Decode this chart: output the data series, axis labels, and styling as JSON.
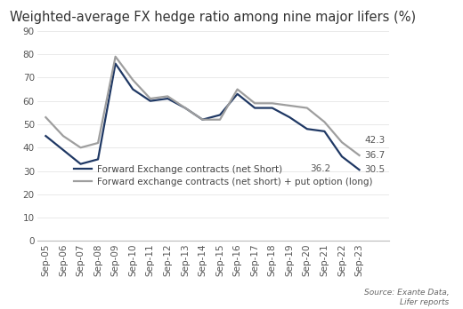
{
  "title": "Weighted-average FX hedge ratio among nine major lifers (%)",
  "labels": [
    "Sep-05",
    "Sep-06",
    "Sep-07",
    "Sep-08",
    "Sep-09",
    "Sep-10",
    "Sep-11",
    "Sep-12",
    "Sep-13",
    "Sep-14",
    "Sep-15",
    "Sep-16",
    "Sep-17",
    "Sep-18",
    "Sep-19",
    "Sep-20",
    "Sep-21",
    "Sep-22",
    "Sep-23"
  ],
  "forward_short": [
    45,
    39,
    33,
    35,
    76,
    65,
    60,
    61,
    57,
    52,
    54,
    63,
    57,
    57,
    53,
    48,
    47,
    36.2,
    30.5
  ],
  "forward_plus_put": [
    53,
    45,
    40,
    42,
    79,
    69,
    61,
    62,
    57,
    52,
    52,
    65,
    59,
    59,
    58,
    57,
    51,
    42.3,
    36.7
  ],
  "forward_short_color": "#1f3864",
  "forward_plus_put_color": "#9e9e9e",
  "ylim": [
    0,
    90
  ],
  "yticks": [
    0,
    10,
    20,
    30,
    40,
    50,
    60,
    70,
    80,
    90
  ],
  "legend_label_1": "Forward Exchange contracts (net Short)",
  "legend_label_2": "Forward exchange contracts (net short) + put option (long)",
  "source_text": "Source: Exante Data,\nLifer reports",
  "background_color": "#ffffff",
  "title_fontsize": 10.5,
  "tick_fontsize": 7.5,
  "legend_fontsize": 7.5,
  "ann_36_2": [
    17,
    36.2
  ],
  "ann_42_3": [
    18,
    36.7
  ],
  "ann_36_7": [
    18,
    36.7
  ],
  "ann_30_5": [
    18,
    30.5
  ]
}
